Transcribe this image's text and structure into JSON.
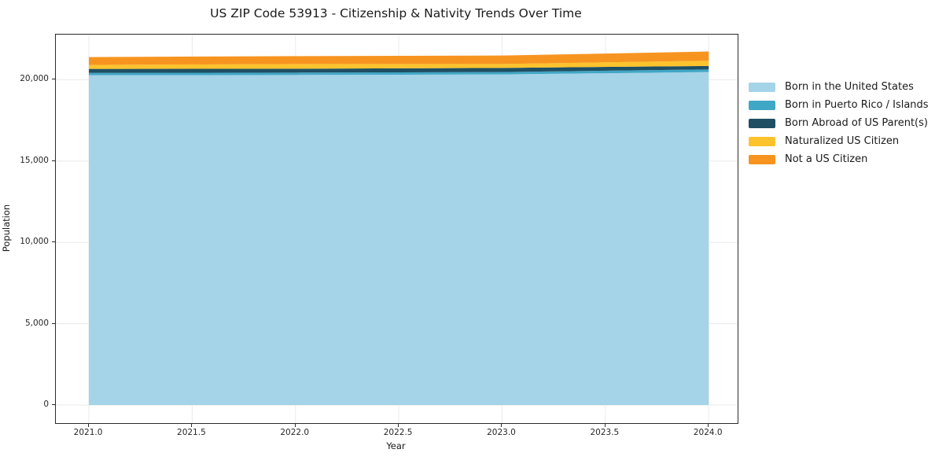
{
  "chart_data": {
    "type": "area",
    "stacked": true,
    "title": "US ZIP Code 53913 - Citizenship & Nativity Trends Over Time",
    "xlabel": "Year",
    "ylabel": "Population",
    "x": [
      2021,
      2022,
      2023,
      2024
    ],
    "series": [
      {
        "name": "Born in the United States",
        "color": "#a5d3e8",
        "values": [
          20280,
          20295,
          20330,
          20475
        ]
      },
      {
        "name": "Born in Puerto Rico / Islands",
        "color": "#41a7c6",
        "values": [
          145,
          145,
          145,
          160
        ]
      },
      {
        "name": "Born Abroad of US Parent(s)",
        "color": "#1f4f63",
        "values": [
          240,
          240,
          255,
          215
        ]
      },
      {
        "name": "Naturalized US Citizen",
        "color": "#fcc32d",
        "values": [
          245,
          290,
          240,
          320
        ]
      },
      {
        "name": "Not a US Citizen",
        "color": "#f79420",
        "values": [
          485,
          485,
          520,
          565
        ]
      }
    ],
    "xlim": [
      2020.84,
      2024.14
    ],
    "ylim": [
      -1112,
      22777
    ],
    "xticks": [
      2021.0,
      2021.5,
      2022.0,
      2022.5,
      2023.0,
      2023.5,
      2024.0
    ],
    "xtick_labels": [
      "2021.0",
      "2021.5",
      "2022.0",
      "2022.5",
      "2023.0",
      "2023.5",
      "2024.0"
    ],
    "yticks": [
      0,
      5000,
      10000,
      15000,
      20000
    ],
    "ytick_labels": [
      "0",
      "5,000",
      "10,000",
      "15,000",
      "20,000"
    ],
    "grid": true,
    "legend_position": "right-outside",
    "colors": {
      "grid": "#eaeaea",
      "spine": "#2b2b2b",
      "tick_text": "#262626",
      "background": "#ffffff"
    }
  }
}
